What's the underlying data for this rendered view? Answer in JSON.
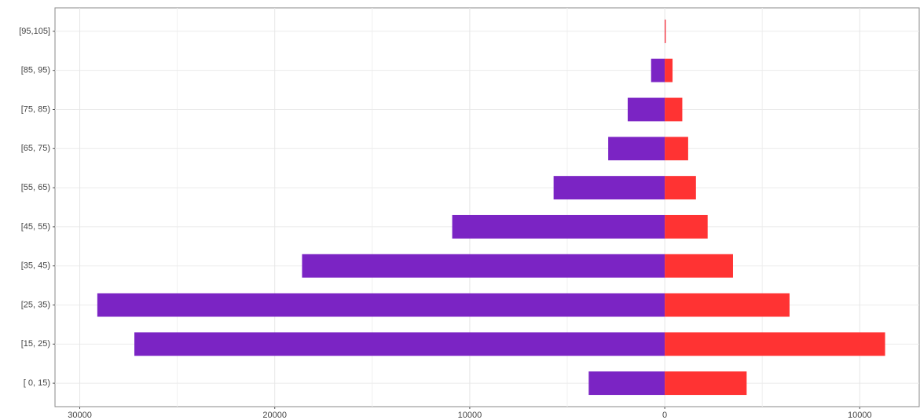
{
  "chart_data": {
    "type": "bar",
    "orientation": "horizontal",
    "stacked": false,
    "categories": [
      "[ 0, 15)",
      "[15, 25)",
      "[25, 35)",
      "[35, 45)",
      "[45, 55)",
      "[55, 65)",
      "[65, 75)",
      "[75, 85)",
      "[85, 95)",
      "[95,105]"
    ],
    "series": [
      {
        "color": "#7b24c4",
        "values": [
          -3900,
          -27200,
          -29100,
          -18600,
          -10900,
          -5700,
          -2900,
          -1900,
          -700,
          0
        ]
      },
      {
        "color": "#ff3333",
        "values": [
          4200,
          11300,
          6400,
          3500,
          2200,
          1600,
          1200,
          900,
          400,
          50
        ]
      }
    ],
    "xlim": [
      -31270,
      13050
    ],
    "xticks": [
      {
        "value": -30000,
        "label": "30000"
      },
      {
        "value": -20000,
        "label": "20000"
      },
      {
        "value": -10000,
        "label": "10000"
      },
      0,
      10000
    ],
    "grid": true
  }
}
